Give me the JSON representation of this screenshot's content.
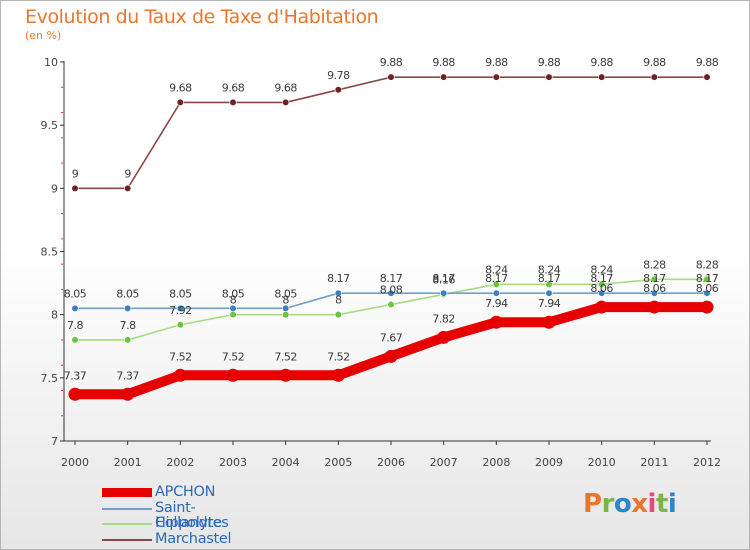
{
  "title": "Evolution du Taux de Taxe d'Habitation",
  "subtitle": "(en %)",
  "logo_text": "Proxiti",
  "logo_letters": [
    {
      "ch": "P",
      "color": "#e8762c"
    },
    {
      "ch": "r",
      "color": "#7ab648"
    },
    {
      "ch": "o",
      "color": "#2b87c9"
    },
    {
      "ch": "x",
      "color": "#e8762c"
    },
    {
      "ch": "i",
      "color": "#e34b7d"
    },
    {
      "ch": "t",
      "color": "#7ab648"
    },
    {
      "ch": "i",
      "color": "#2b87c9"
    }
  ],
  "colors": {
    "title": "#e8762c",
    "legend_text": "#2b69b9",
    "axis": "#333333",
    "label": "#444444"
  },
  "chart_data": {
    "type": "line",
    "title": "Evolution du Taux de Taxe d'Habitation",
    "ylabel": "(en %)",
    "xlabel": "",
    "x": [
      "2000",
      "2001",
      "2002",
      "2003",
      "2004",
      "2005",
      "2006",
      "2007",
      "2008",
      "2009",
      "2010",
      "2011",
      "2012"
    ],
    "ylim": [
      7,
      10
    ],
    "yticks": [
      "7",
      "7.5",
      "8",
      "8.5",
      "9",
      "9.5",
      "10"
    ],
    "grid": false,
    "legend_position": "bottom-left",
    "series": [
      {
        "name": "APCHON",
        "color": "#e60000",
        "dot_color": "#e60000",
        "values": [
          7.37,
          7.37,
          7.52,
          7.52,
          7.52,
          7.52,
          7.67,
          7.82,
          7.94,
          7.94,
          8.06,
          8.06,
          8.06
        ],
        "labels": [
          "7.37",
          "7.37",
          "7.52",
          "7.52",
          "7.52",
          "7.52",
          "7.67",
          "7.82",
          "7.94",
          "7.94",
          "8.06",
          "8.06",
          "8.06"
        ]
      },
      {
        "name": "Saint-Hippolyte",
        "color": "#6f9fcb",
        "dot_color": "#3a7fc1",
        "values": [
          8.05,
          8.05,
          8.05,
          8.05,
          8.05,
          8.17,
          8.17,
          8.17,
          8.17,
          8.17,
          8.17,
          8.17,
          8.17
        ],
        "labels": [
          "8.05",
          "8.05",
          "8.05",
          "8.05",
          "8.05",
          "8.17",
          "8.17",
          "8.17",
          "8.17",
          "8.17",
          "8.17",
          "8.17",
          "8.17"
        ]
      },
      {
        "name": "Collandres",
        "color": "#a6dd80",
        "dot_color": "#6cc43c",
        "values": [
          7.8,
          7.8,
          7.92,
          8,
          8,
          8,
          8.08,
          8.16,
          8.24,
          8.24,
          8.24,
          8.28,
          8.28
        ],
        "labels": [
          "7.8",
          "7.8",
          "7.92",
          "8",
          "8",
          "8",
          "8.08",
          "8.16",
          "8.24",
          "8.24",
          "8.24",
          "8.28",
          "8.28"
        ]
      },
      {
        "name": "Marchastel",
        "color": "#8b4646",
        "dot_color": "#6e2222",
        "values": [
          9,
          9,
          9.68,
          9.68,
          9.68,
          9.78,
          9.88,
          9.88,
          9.88,
          9.88,
          9.88,
          9.88,
          9.88
        ],
        "labels": [
          "9",
          "9",
          "9.68",
          "9.68",
          "9.68",
          "9.78",
          "9.88",
          "9.88",
          "9.88",
          "9.88",
          "9.88",
          "9.88",
          "9.88"
        ]
      }
    ]
  }
}
